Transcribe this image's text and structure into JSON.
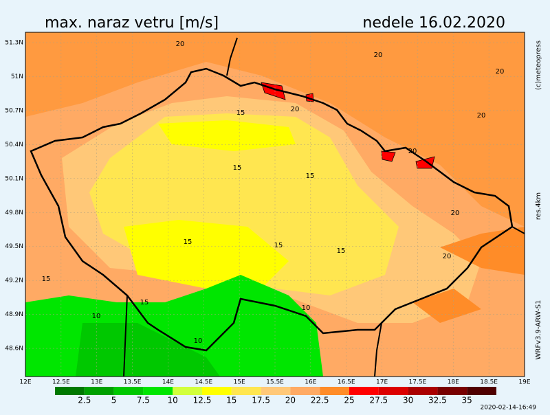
{
  "header": {
    "title": "max. naraz vetru [m/s]",
    "date": "nedele 16.02.2020"
  },
  "lat_labels": [
    "51.3N",
    "51N",
    "50.7N",
    "50.4N",
    "50.1N",
    "49.8N",
    "49.5N",
    "49.2N",
    "48.9N",
    "48.6N"
  ],
  "lon_labels": [
    "12E",
    "12.5E",
    "13E",
    "13.5E",
    "14E",
    "14.5E",
    "15E",
    "15.5E",
    "16E",
    "16.5E",
    "17E",
    "17.5E",
    "18E",
    "18.5E",
    "19E"
  ],
  "side_texts": {
    "copyright": "(c)meteopress",
    "resolution": "res.4km",
    "model": "WRFv3.9-ARW-S1"
  },
  "contour_labels": [
    "20",
    "20",
    "20",
    "20",
    "20",
    "20",
    "20",
    "15",
    "15",
    "15",
    "15",
    "15",
    "15",
    "15",
    "15",
    "10",
    "10",
    "10",
    "20"
  ],
  "legend": {
    "labels": [
      2.5,
      5,
      7.5,
      10,
      12.5,
      15,
      17.5,
      20,
      22.5,
      25,
      27.5,
      30,
      32.5,
      35
    ],
    "colors": [
      "#007800",
      "#00a000",
      "#00c800",
      "#00e600",
      "#d2ff3c",
      "#ffff00",
      "#ffe650",
      "#ffc878",
      "#ffaa64",
      "#ff8c28",
      "#ff0000",
      "#dc0000",
      "#aa0000",
      "#780000",
      "#500000"
    ]
  },
  "timestamp": "2020-02-14-16:49"
}
